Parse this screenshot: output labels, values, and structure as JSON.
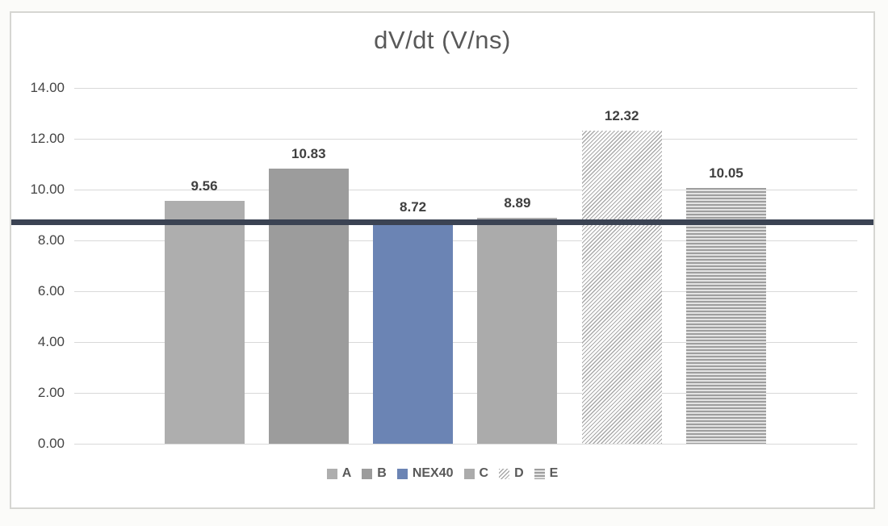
{
  "chart_data": {
    "type": "bar",
    "title": "dV/dt (V/ns)",
    "categories": [
      "A",
      "B",
      "NEX40",
      "C",
      "D",
      "E"
    ],
    "values": [
      9.56,
      10.83,
      8.72,
      8.89,
      12.32,
      10.05
    ],
    "value_labels": [
      "9.56",
      "10.83",
      "8.72",
      "8.89",
      "12.32",
      "10.05"
    ],
    "series": [
      {
        "name": "A",
        "value": 9.56,
        "fill": "#aeaeae",
        "pattern": "solid"
      },
      {
        "name": "B",
        "value": 10.83,
        "fill": "#9c9c9c",
        "pattern": "solid"
      },
      {
        "name": "NEX40",
        "value": 8.72,
        "fill": "#6b84b4",
        "pattern": "solid"
      },
      {
        "name": "C",
        "value": 8.89,
        "fill": "#ababab",
        "pattern": "solid"
      },
      {
        "name": "D",
        "value": 12.32,
        "fill": "#a9a9a9",
        "pattern": "diagonal-hatch"
      },
      {
        "name": "E",
        "value": 10.05,
        "fill": "#9e9e9e",
        "pattern": "horizontal-stripes"
      }
    ],
    "ylim": [
      0,
      14
    ],
    "y_tick_step": 2,
    "y_tick_labels": [
      "0.00",
      "2.00",
      "4.00",
      "6.00",
      "8.00",
      "10.00",
      "12.00",
      "14.00"
    ],
    "grid": true,
    "legend_position": "bottom",
    "legend_entries": [
      "A",
      "B",
      "NEX40",
      "C",
      "D",
      "E"
    ],
    "reference_line": {
      "value": 8.72,
      "color": "#3b4353"
    }
  },
  "colors": {
    "title": "#595959",
    "axis_label": "#444444",
    "value_label": "#3f3f3f",
    "gridline": "#d9d9d9",
    "panel_border": "#d6d6d2",
    "panel_background": "#ffffff",
    "reference_line": "#3b4353"
  }
}
